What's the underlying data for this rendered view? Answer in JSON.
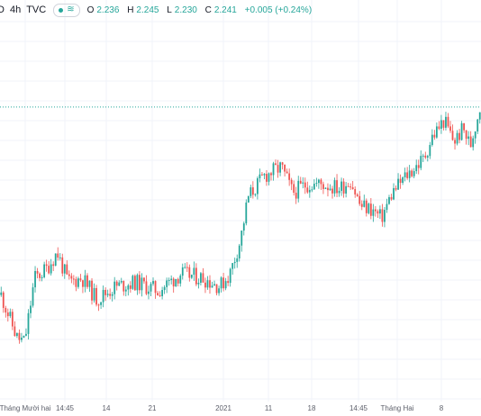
{
  "header": {
    "symbol_fragment": "D",
    "interval": "4h",
    "source": "TVC",
    "wave_icon": "≋",
    "ohlc": {
      "o_label": "O",
      "o_value": "2.236",
      "h_label": "H",
      "h_value": "2.245",
      "l_label": "L",
      "l_value": "2.230",
      "c_label": "C",
      "c_value": "2.241",
      "change": "+0.005 (+0.24%)"
    }
  },
  "colors": {
    "up": "#26a69a",
    "down": "#ef5350",
    "grid": "#f0f3fa",
    "axis_text": "#5d606b",
    "price_line": "#26a69a"
  },
  "chart_data": {
    "type": "candlestick",
    "title": "",
    "xlabel": "",
    "ylabel": "",
    "grid": true,
    "x_tick_labels": [
      "Tháng Mười hai",
      "14:45",
      "14",
      "21",
      "2021",
      "11",
      "18",
      "14:45",
      "Tháng Hai",
      "8"
    ],
    "current_close": 2.241,
    "anchor_prices": [
      {
        "x": 0.0,
        "y": 1.8
      },
      {
        "x": 0.033,
        "y": 1.7
      },
      {
        "x": 0.049,
        "y": 1.69
      },
      {
        "x": 0.07,
        "y": 1.84
      },
      {
        "x": 0.094,
        "y": 1.86
      },
      {
        "x": 0.117,
        "y": 1.9
      },
      {
        "x": 0.14,
        "y": 1.83
      },
      {
        "x": 0.169,
        "y": 1.84
      },
      {
        "x": 0.2,
        "y": 1.79
      },
      {
        "x": 0.239,
        "y": 1.82
      },
      {
        "x": 0.281,
        "y": 1.83
      },
      {
        "x": 0.328,
        "y": 1.81
      },
      {
        "x": 0.375,
        "y": 1.85
      },
      {
        "x": 0.422,
        "y": 1.84
      },
      {
        "x": 0.457,
        "y": 1.82
      },
      {
        "x": 0.478,
        "y": 1.85
      },
      {
        "x": 0.5,
        "y": 1.93
      },
      {
        "x": 0.516,
        "y": 2.03
      },
      {
        "x": 0.55,
        "y": 2.08
      },
      {
        "x": 0.585,
        "y": 2.1
      },
      {
        "x": 0.609,
        "y": 2.04
      },
      {
        "x": 0.638,
        "y": 2.06
      },
      {
        "x": 0.674,
        "y": 2.06
      },
      {
        "x": 0.707,
        "y": 2.05
      },
      {
        "x": 0.73,
        "y": 2.07
      },
      {
        "x": 0.75,
        "y": 2.01
      },
      {
        "x": 0.775,
        "y": 2.0
      },
      {
        "x": 0.794,
        "y": 1.98
      },
      {
        "x": 0.817,
        "y": 2.04
      },
      {
        "x": 0.846,
        "y": 2.08
      },
      {
        "x": 0.883,
        "y": 2.12
      },
      {
        "x": 0.9,
        "y": 2.17
      },
      {
        "x": 0.925,
        "y": 2.21
      },
      {
        "x": 0.946,
        "y": 2.16
      },
      {
        "x": 0.965,
        "y": 2.19
      },
      {
        "x": 0.98,
        "y": 2.15
      },
      {
        "x": 1.0,
        "y": 2.241
      }
    ],
    "ylim": [
      1.55,
      2.45
    ]
  }
}
